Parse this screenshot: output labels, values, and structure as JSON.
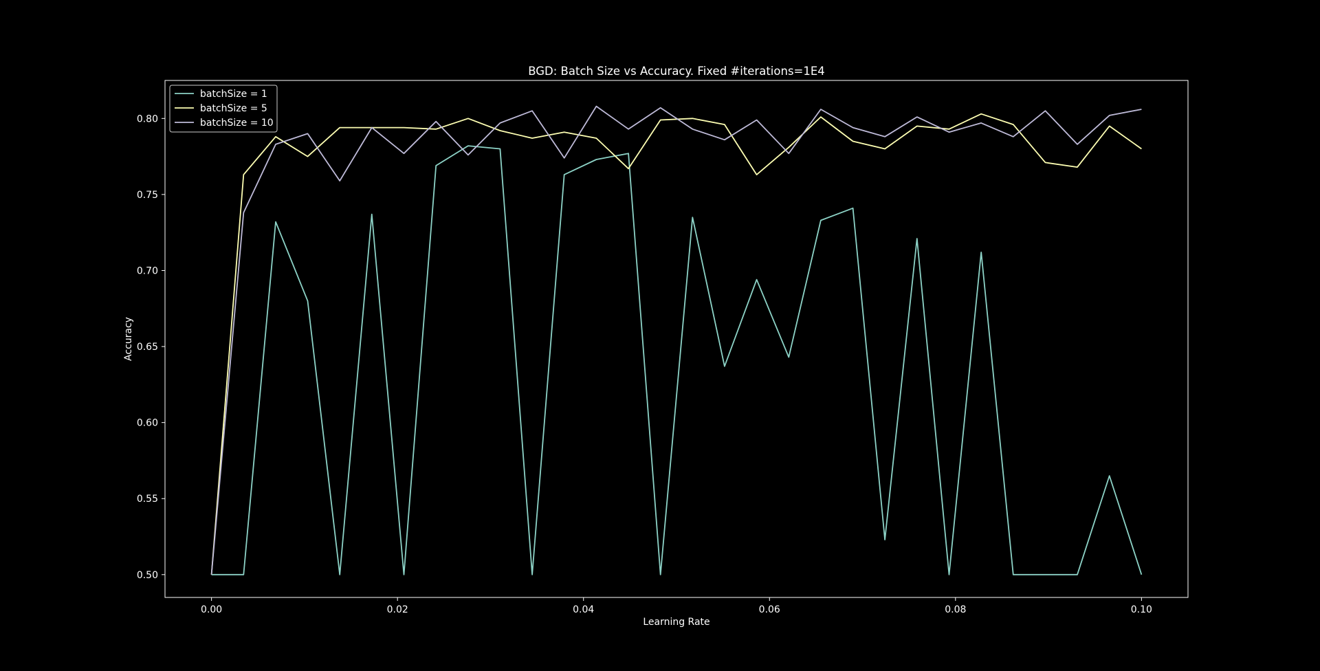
{
  "chart_data": {
    "type": "line",
    "title": "BGD: Batch Size vs Accuracy. Fixed #iterations=1E4",
    "xlabel": "Learning Rate",
    "ylabel": "Accuracy",
    "xlim": [
      -0.005,
      0.105
    ],
    "ylim": [
      0.485,
      0.825
    ],
    "xticks": [
      0.0,
      0.02,
      0.04,
      0.06,
      0.08,
      0.1
    ],
    "xtick_labels": [
      "0.00",
      "0.02",
      "0.04",
      "0.06",
      "0.08",
      "0.10"
    ],
    "yticks": [
      0.5,
      0.55,
      0.6,
      0.65,
      0.7,
      0.75,
      0.8
    ],
    "ytick_labels": [
      "0.50",
      "0.55",
      "0.60",
      "0.65",
      "0.70",
      "0.75",
      "0.80"
    ],
    "grid": false,
    "legend_position": "top-left",
    "background": "#000000",
    "x": [
      0.0,
      0.00345,
      0.0069,
      0.01034,
      0.01379,
      0.01724,
      0.02069,
      0.02414,
      0.02759,
      0.03103,
      0.03448,
      0.03793,
      0.04138,
      0.04483,
      0.04828,
      0.05172,
      0.05517,
      0.05862,
      0.06207,
      0.06552,
      0.06897,
      0.07241,
      0.07586,
      0.07931,
      0.08276,
      0.08621,
      0.08966,
      0.0931,
      0.09655,
      0.1
    ],
    "series": [
      {
        "name": "batchSize = 1",
        "color": "#8dd3c7",
        "values": [
          0.5,
          0.5,
          0.732,
          0.68,
          0.5,
          0.737,
          0.5,
          0.769,
          0.782,
          0.78,
          0.5,
          0.763,
          0.773,
          0.777,
          0.5,
          0.735,
          0.637,
          0.694,
          0.643,
          0.733,
          0.741,
          0.523,
          0.721,
          0.5,
          0.712,
          0.5,
          0.5,
          0.5,
          0.565,
          0.5
        ]
      },
      {
        "name": "batchSize = 5",
        "color": "#feffb3",
        "values": [
          0.5,
          0.763,
          0.788,
          0.775,
          0.794,
          0.794,
          0.794,
          0.793,
          0.8,
          0.792,
          0.787,
          0.791,
          0.787,
          0.767,
          0.799,
          0.8,
          0.796,
          0.763,
          0.781,
          0.801,
          0.785,
          0.78,
          0.795,
          0.793,
          0.803,
          0.796,
          0.771,
          0.768,
          0.795,
          0.78
        ]
      },
      {
        "name": "batchSize = 10",
        "color": "#bfbbd9",
        "values": [
          0.5,
          0.738,
          0.783,
          0.79,
          0.759,
          0.794,
          0.777,
          0.798,
          0.776,
          0.797,
          0.805,
          0.774,
          0.808,
          0.793,
          0.807,
          0.793,
          0.786,
          0.799,
          0.777,
          0.806,
          0.794,
          0.788,
          0.801,
          0.791,
          0.797,
          0.788,
          0.805,
          0.783,
          0.802,
          0.806
        ]
      }
    ]
  }
}
